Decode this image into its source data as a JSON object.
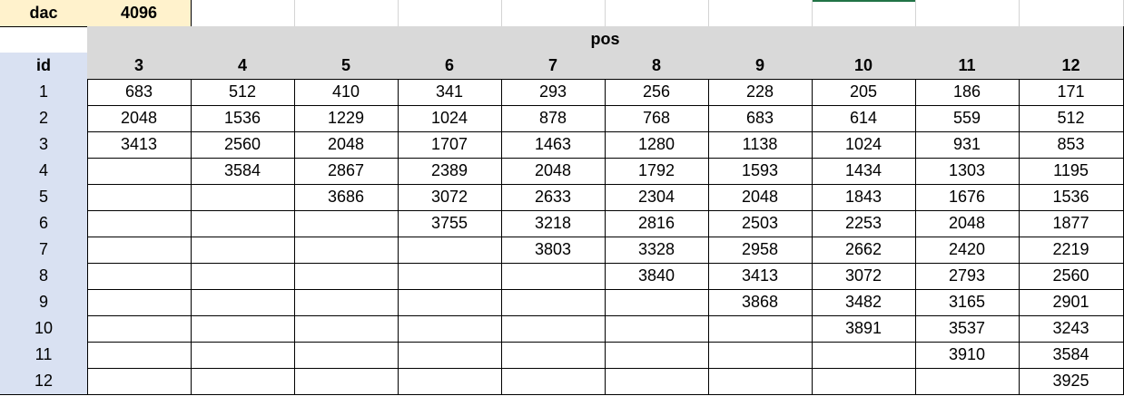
{
  "sheet": {
    "dac_label": "dac",
    "dac_value": "4096",
    "pos_label": "pos",
    "id_label": "id",
    "columns": [
      "3",
      "4",
      "5",
      "6",
      "7",
      "8",
      "9",
      "10",
      "11",
      "12"
    ],
    "ids": [
      "1",
      "2",
      "3",
      "4",
      "5",
      "6",
      "7",
      "8",
      "9",
      "10",
      "11",
      "12"
    ],
    "rows": [
      [
        "683",
        "512",
        "410",
        "341",
        "293",
        "256",
        "228",
        "205",
        "186",
        "171"
      ],
      [
        "2048",
        "1536",
        "1229",
        "1024",
        "878",
        "768",
        "683",
        "614",
        "559",
        "512"
      ],
      [
        "3413",
        "2560",
        "2048",
        "1707",
        "1463",
        "1280",
        "1138",
        "1024",
        "931",
        "853"
      ],
      [
        "",
        "3584",
        "2867",
        "2389",
        "2048",
        "1792",
        "1593",
        "1434",
        "1303",
        "1195"
      ],
      [
        "",
        "",
        "3686",
        "3072",
        "2633",
        "2304",
        "2048",
        "1843",
        "1676",
        "1536"
      ],
      [
        "",
        "",
        "",
        "3755",
        "3218",
        "2816",
        "2503",
        "2253",
        "2048",
        "1877"
      ],
      [
        "",
        "",
        "",
        "",
        "3803",
        "3328",
        "2958",
        "2662",
        "2420",
        "2219"
      ],
      [
        "",
        "",
        "",
        "",
        "",
        "3840",
        "3413",
        "3072",
        "2793",
        "2560"
      ],
      [
        "",
        "",
        "",
        "",
        "",
        "",
        "3868",
        "3482",
        "3165",
        "2901"
      ],
      [
        "",
        "",
        "",
        "",
        "",
        "",
        "",
        "3891",
        "3537",
        "3243"
      ],
      [
        "",
        "",
        "",
        "",
        "",
        "",
        "",
        "",
        "3910",
        "3584"
      ],
      [
        "",
        "",
        "",
        "",
        "",
        "",
        "",
        "",
        "",
        "3925"
      ]
    ]
  },
  "colors": {
    "dac_fill": "#fff2cc",
    "header_fill": "#d9d9d9",
    "id_fill": "#d9e1f2",
    "selection_green": "#217346"
  }
}
